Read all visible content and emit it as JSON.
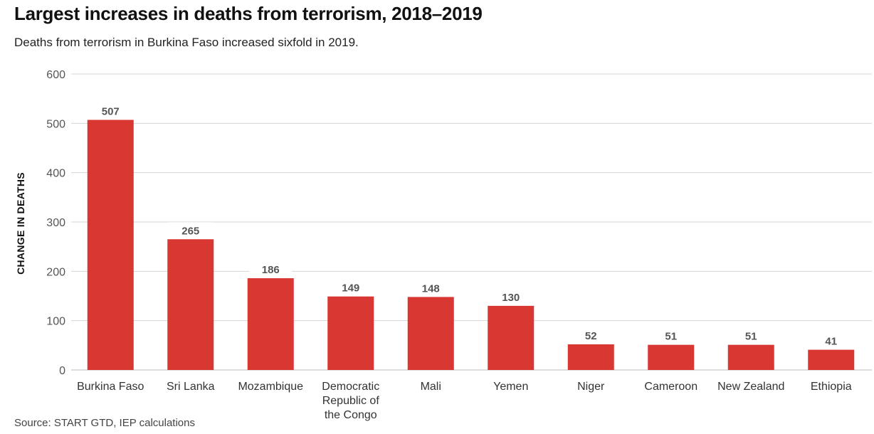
{
  "chart_data": {
    "type": "bar",
    "title": "Largest increases in deaths from terrorism, 2018–2019",
    "subtitle": "Deaths from terrorism in Burkina Faso increased sixfold in 2019.",
    "ylabel": "CHANGE IN DEATHS",
    "xlabel": "",
    "source": "Source: START GTD, IEP calculations",
    "categories": [
      "Burkina Faso",
      "Sri Lanka",
      "Mozambique",
      "Democratic Republic of the Congo",
      "Mali",
      "Yemen",
      "Niger",
      "Cameroon",
      "New Zealand",
      "Ethiopia"
    ],
    "category_lines": [
      [
        "Burkina Faso"
      ],
      [
        "Sri Lanka"
      ],
      [
        "Mozambique"
      ],
      [
        "Democratic",
        "Republic of",
        "the Congo"
      ],
      [
        "Mali"
      ],
      [
        "Yemen"
      ],
      [
        "Niger"
      ],
      [
        "Cameroon"
      ],
      [
        "New Zealand"
      ],
      [
        "Ethiopia"
      ]
    ],
    "values": [
      507,
      265,
      186,
      149,
      148,
      130,
      52,
      51,
      51,
      41
    ],
    "value_labels": [
      "507",
      "265",
      "186",
      "149",
      "148",
      "130",
      "52",
      "51",
      "51",
      "41"
    ],
    "ylim": [
      0,
      600
    ],
    "yticks": [
      0,
      100,
      200,
      300,
      400,
      500,
      600
    ],
    "ytick_labels": [
      "0",
      "100",
      "200",
      "300",
      "400",
      "500",
      "600"
    ],
    "grid": true,
    "bar_color": "#d93732"
  }
}
